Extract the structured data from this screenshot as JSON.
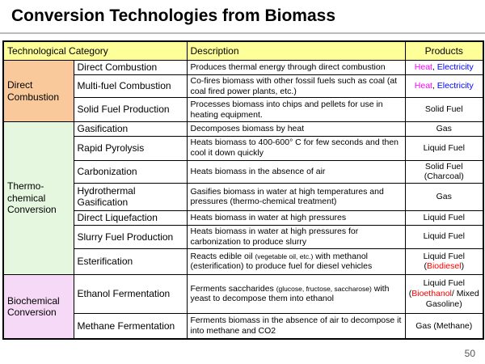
{
  "title": "Conversion Technologies from Biomass",
  "page_number": "50",
  "table": {
    "header": [
      "Technological Category",
      "Description",
      "Products"
    ],
    "header_color": "#ffff99",
    "groups": [
      {
        "category": "Direct Combustion",
        "color": "#f9c89b",
        "rows": [
          {
            "technology": "Direct Combustion",
            "description": [
              {
                "text": "Produces thermal energy through direct combustion"
              }
            ],
            "products": [
              {
                "text": "Heat",
                "color": "#ff00ff"
              },
              {
                "text": ", "
              },
              {
                "text": "Electricity",
                "color": "#0000ff"
              }
            ]
          },
          {
            "technology": "Multi-fuel Combustion",
            "description": [
              {
                "text": "Co-fires biomass with other fossil fuels such as coal (at coal fired power plants, etc.)"
              }
            ],
            "products": [
              {
                "text": "Heat",
                "color": "#ff00ff"
              },
              {
                "text": ", "
              },
              {
                "text": "Electricity",
                "color": "#0000ff"
              }
            ]
          },
          {
            "technology": "Solid Fuel Production",
            "description": [
              {
                "text": "Processes biomass into chips and pellets for use in heating equipment."
              }
            ],
            "products": [
              {
                "text": "Solid Fuel"
              }
            ]
          }
        ]
      },
      {
        "category": "Thermo-chemical Conversion",
        "color": "#e6f7e0",
        "rows": [
          {
            "technology": "Gasification",
            "description": [
              {
                "text": "Decomposes biomass by heat"
              }
            ],
            "products": [
              {
                "text": "Gas"
              }
            ]
          },
          {
            "technology": "Rapid Pyrolysis",
            "description": [
              {
                "text": "Heats biomass to 400-600° C for few seconds and then cool it down quickly"
              }
            ],
            "products": [
              {
                "text": "Liquid Fuel"
              }
            ]
          },
          {
            "technology": "Carbonization",
            "description": [
              {
                "text": "Heats biomass in the absence of air"
              }
            ],
            "products": [
              {
                "text": "Solid Fuel (Charcoal)"
              }
            ]
          },
          {
            "technology": "Hydrothermal Gasification",
            "description": [
              {
                "text": "Gasifies biomass in water at high temperatures and pressures (thermo-chemical treatment)"
              }
            ],
            "products": [
              {
                "text": "Gas"
              }
            ]
          },
          {
            "technology": "Direct Liquefaction",
            "description": [
              {
                "text": "Heats biomass in water at high pressures"
              }
            ],
            "products": [
              {
                "text": "Liquid Fuel"
              }
            ]
          },
          {
            "technology": "Slurry Fuel Production",
            "description": [
              {
                "text": "Heats biomass in water at high pressures for carbonization to produce slurry"
              }
            ],
            "products": [
              {
                "text": "Liquid Fuel"
              }
            ]
          },
          {
            "technology": "Esterification",
            "description": [
              {
                "text": "Reacts edible oil "
              },
              {
                "text": "(vegetable oil, etc.)",
                "small": true
              },
              {
                "text": " with methanol (esterification) to produce fuel for diesel vehicles"
              }
            ],
            "products": [
              {
                "text": "Liquid Fuel ("
              },
              {
                "text": "Biodiesel",
                "color": "#ff0000"
              },
              {
                "text": ")"
              }
            ]
          }
        ]
      },
      {
        "category": "Biochemical Conversion",
        "color": "#f6d9f6",
        "rows": [
          {
            "technology": "Ethanol Fermentation",
            "description": [
              {
                "text": "Ferments saccharides "
              },
              {
                "text": "(glucose, fructose, saccharose)",
                "small": true
              },
              {
                "text": " with yeast to decompose them into ethanol"
              }
            ],
            "products": [
              {
                "text": "Liquid Fuel ("
              },
              {
                "text": "Bioethanol",
                "color": "#ff0000"
              },
              {
                "text": "/ Mixed Gasoline)"
              }
            ]
          },
          {
            "technology": "Methane Fermentation",
            "description": [
              {
                "text": "Ferments biomass in the absence of air to decompose it into methane and CO2"
              }
            ],
            "products": [
              {
                "text": "Gas (Methane)"
              }
            ]
          }
        ]
      }
    ]
  }
}
